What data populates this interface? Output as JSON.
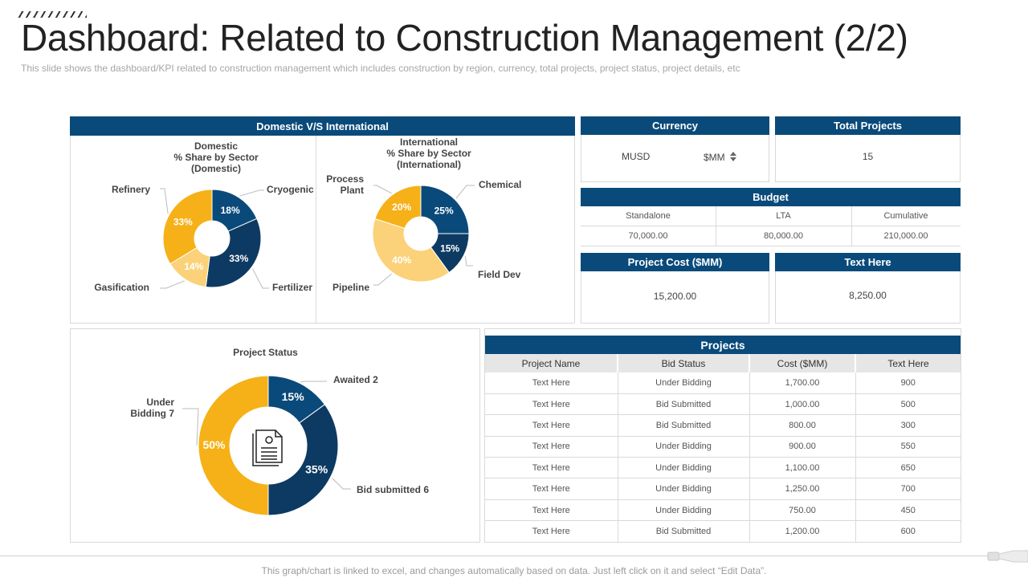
{
  "header": {
    "title": "Dashboard: Related to Construction Management (2/2)",
    "subtitle": "This slide shows the dashboard/KPI related to construction management which includes construction by region, currency, total projects, project status, project details, etc"
  },
  "colors": {
    "navy": "#0a4a7a",
    "dark_navy": "#0d3a62",
    "yellow": "#f5b117",
    "light_yellow": "#fbd27a"
  },
  "domestic_international": {
    "header": "Domestic V/S International",
    "domestic_title": [
      "Domestic",
      "% Share by Sector",
      "(Domestic)"
    ],
    "international_title": [
      "International",
      "% Share by Sector",
      "(International)"
    ]
  },
  "currency": {
    "header": "Currency",
    "left": "MUSD",
    "right": "$MM"
  },
  "total_projects": {
    "header": "Total Projects",
    "value": "15"
  },
  "budget": {
    "header": "Budget",
    "columns": [
      "Standalone",
      "LTA",
      "Cumulative"
    ],
    "values": [
      "70,000.00",
      "80,000.00",
      "210,000.00"
    ]
  },
  "project_cost": {
    "header": "Project Cost ($MM)",
    "value": "15,200.00"
  },
  "text_here_box": {
    "header": "Text Here",
    "value": "8,250.00"
  },
  "project_status": {
    "title": "Project Status"
  },
  "projects": {
    "header": "Projects",
    "columns": [
      "Project Name",
      "Bid Status",
      "Cost ($MM)",
      "Text Here"
    ],
    "rows": [
      [
        "Text Here",
        "Under Bidding",
        "1,700.00",
        "900"
      ],
      [
        "Text Here",
        "Bid Submitted",
        "1,000.00",
        "500"
      ],
      [
        "Text Here",
        "Bid Submitted",
        "800.00",
        "300"
      ],
      [
        "Text Here",
        "Under Bidding",
        "900.00",
        "550"
      ],
      [
        "Text Here",
        "Under Bidding",
        "1,100.00",
        "650"
      ],
      [
        "Text Here",
        "Under Bidding",
        "1,250.00",
        "700"
      ],
      [
        "Text Here",
        "Under Bidding",
        "750.00",
        "450"
      ],
      [
        "Text Here",
        "Bid Submitted",
        "1,200.00",
        "600"
      ]
    ]
  },
  "footer": "This graph/chart is linked to excel, and changes automatically based on data. Just left click on it and select “Edit Data”.",
  "chart_data": [
    {
      "type": "pie",
      "title": "Domestic % Share by Sector (Domestic)",
      "categories": [
        "Cryogenic",
        "Fertilizer",
        "Gasification",
        "Refinery"
      ],
      "values": [
        18,
        33,
        14,
        33
      ],
      "value_labels": [
        "18%",
        "33%",
        "14%",
        "33%"
      ],
      "colors": [
        "#0a4a7a",
        "#0d3a62",
        "#fbd27a",
        "#f5b117"
      ]
    },
    {
      "type": "pie",
      "title": "International % Share by Sector (International)",
      "categories": [
        "Chemical",
        "Field Dev",
        "Pipeline",
        "Process Plant"
      ],
      "values": [
        25,
        15,
        40,
        20
      ],
      "value_labels": [
        "25%",
        "15%",
        "40%",
        "20%"
      ],
      "colors": [
        "#0a4a7a",
        "#0d3a62",
        "#fbd27a",
        "#f5b117"
      ]
    },
    {
      "type": "pie",
      "title": "Project Status",
      "categories": [
        "Awaited 2",
        "Bid submitted 6",
        "Under Bidding 7"
      ],
      "values": [
        15,
        35,
        50
      ],
      "value_labels": [
        "15%",
        "35%",
        "50%"
      ],
      "colors": [
        "#0a4a7a",
        "#0d3a62",
        "#f5b117"
      ]
    }
  ]
}
